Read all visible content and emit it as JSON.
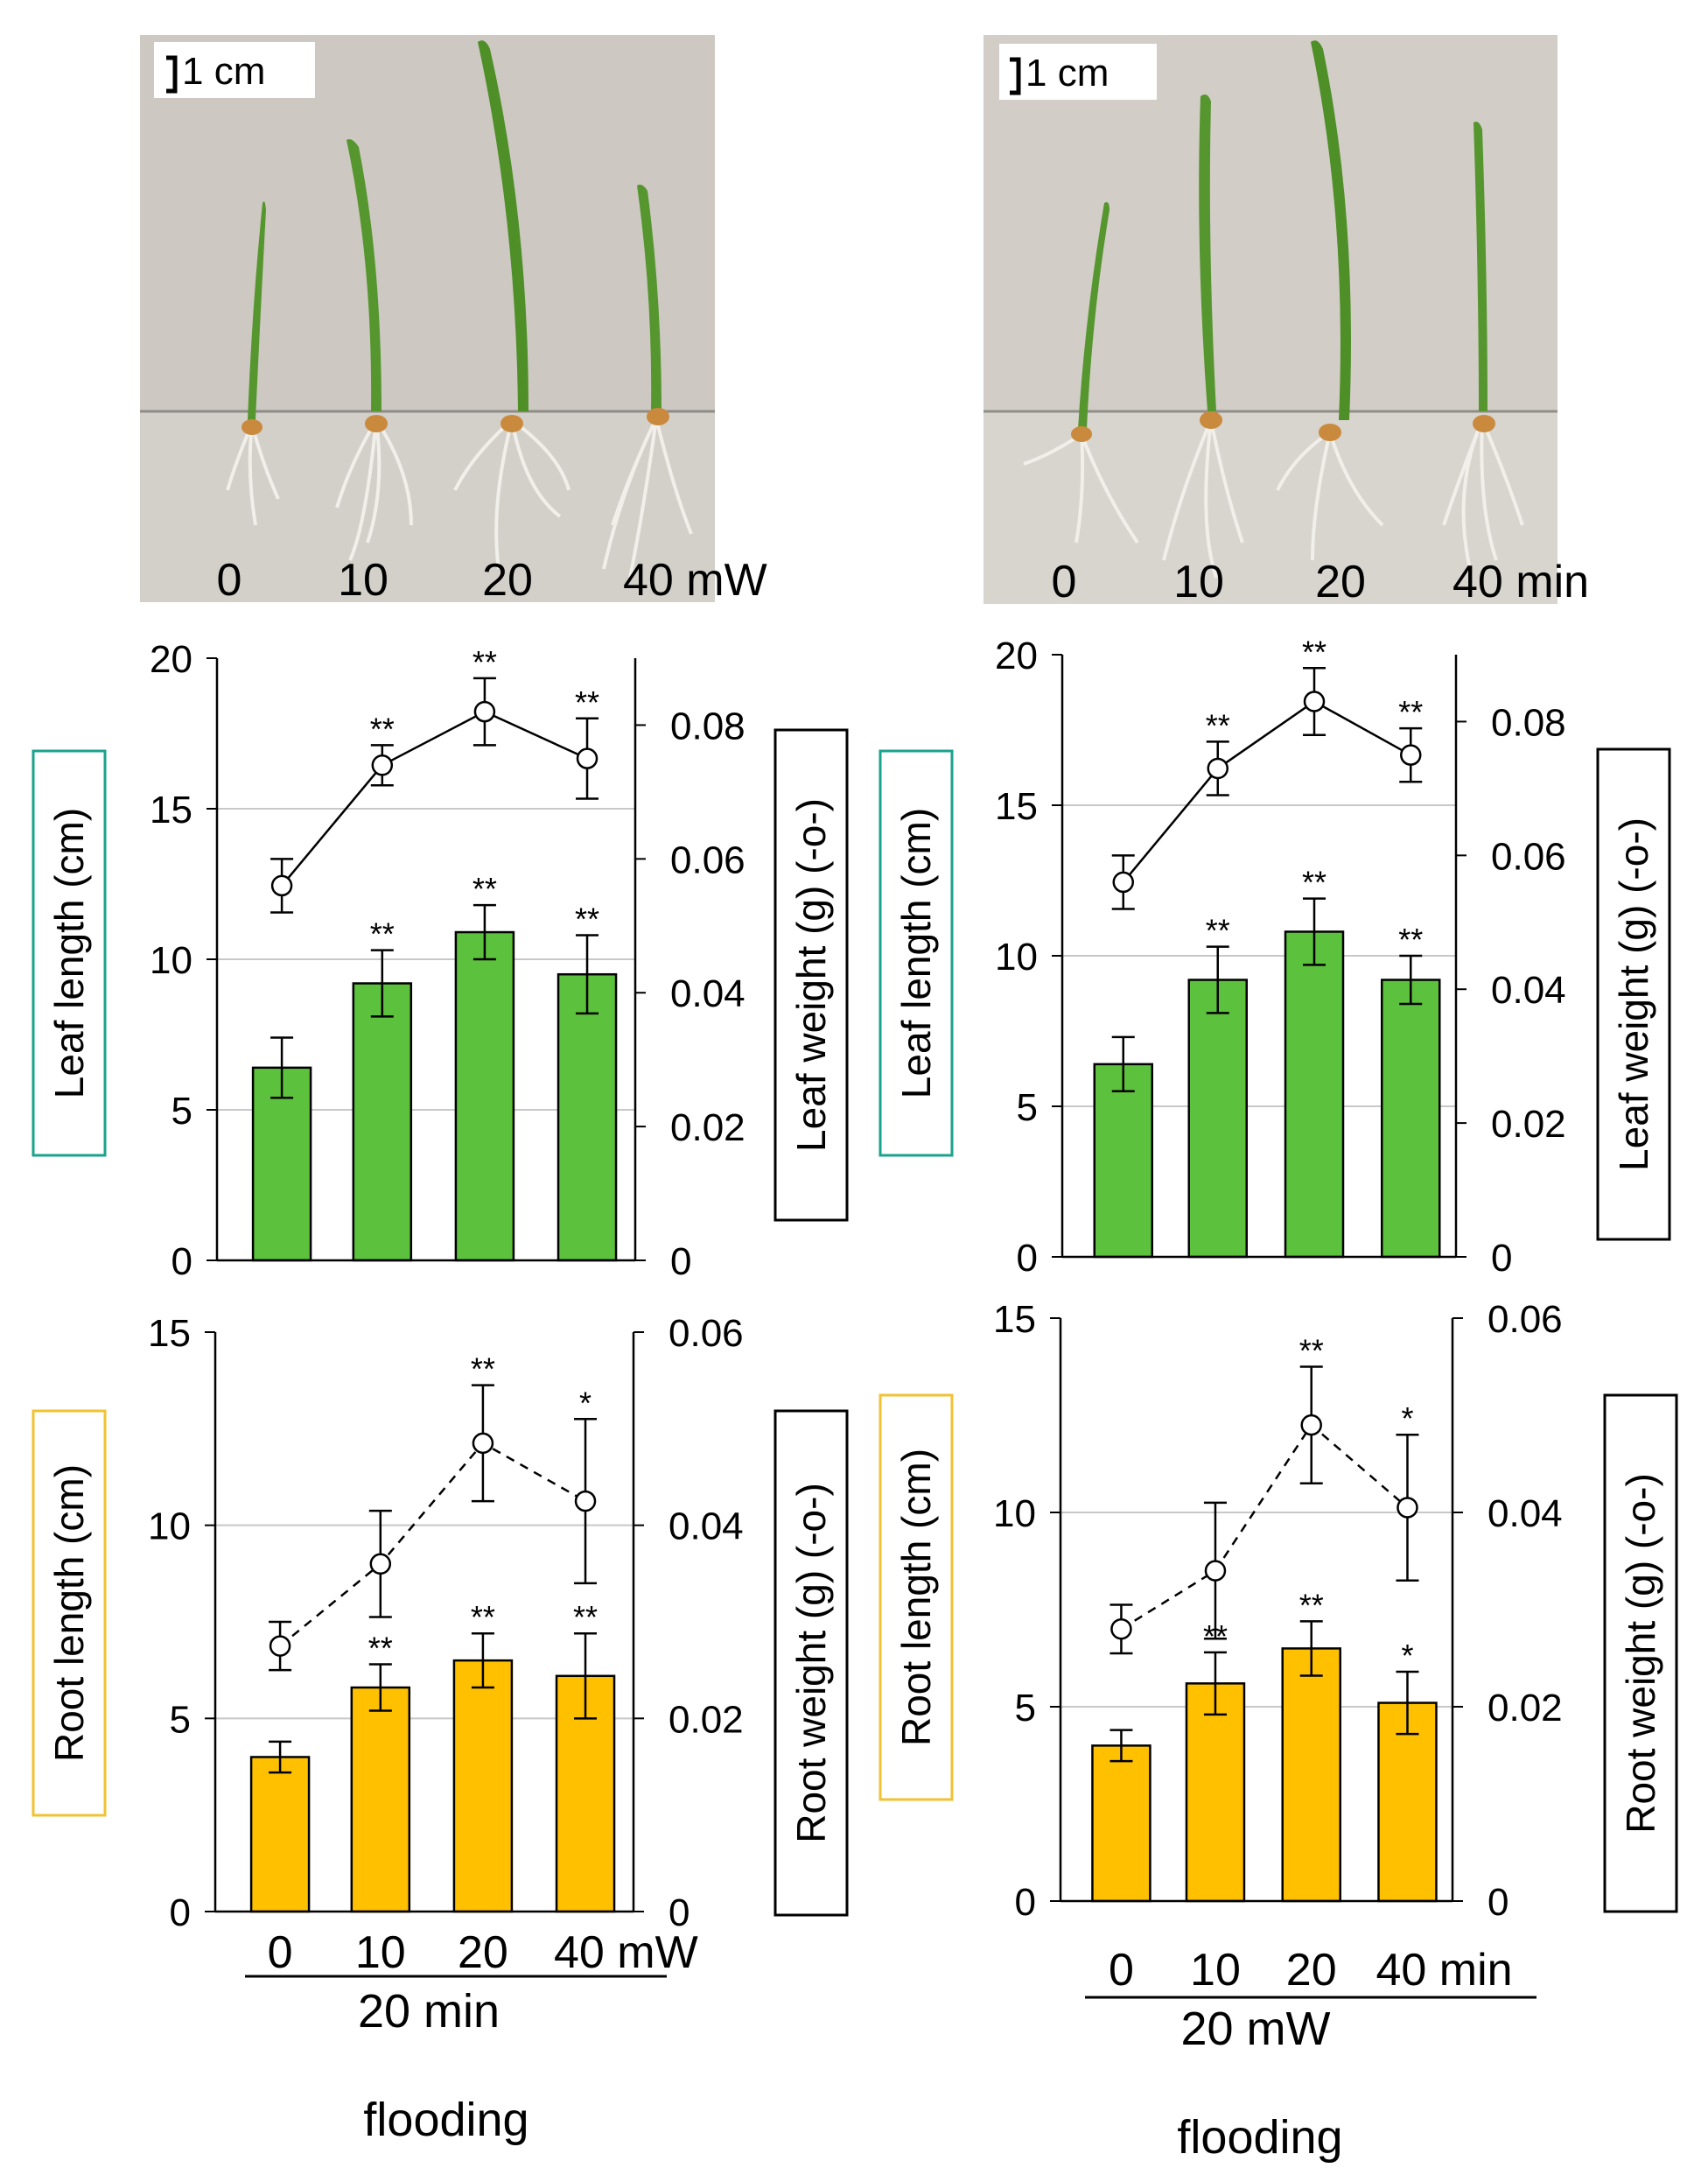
{
  "colors": {
    "leaf_bar": "#5cc13c",
    "root_bar": "#ffc000",
    "leaf_box": "#1aa38c",
    "root_box": "#f2c232",
    "grid": "#c8c8c8",
    "photo_bg": "#ccc7c0",
    "leaf_green": "#4c8f2a",
    "seed": "#c98a3e"
  },
  "photos": [
    {
      "scale_label": "1 cm",
      "labels": [
        "0",
        "10",
        "20",
        "40 mW"
      ]
    },
    {
      "scale_label": "1 cm",
      "labels": [
        "0",
        "10",
        "20",
        "40 min"
      ]
    }
  ],
  "captions": [
    {
      "sub_label": "20 min",
      "flooding": "flooding"
    },
    {
      "sub_label": "20 mW",
      "flooding": "flooding"
    }
  ],
  "chart_data": [
    {
      "id": "leaf-mw",
      "type": "bar+line",
      "categories": [
        "0",
        "10",
        "20",
        "40 mW"
      ],
      "bar_series": {
        "name": "Leaf length (cm)",
        "values": [
          6.4,
          9.2,
          10.9,
          9.5
        ],
        "errors": [
          1.0,
          1.1,
          0.9,
          1.3
        ],
        "sig": [
          "",
          "**",
          "**",
          "**"
        ]
      },
      "line_series": {
        "name": "Leaf weight (g) (-o-)",
        "values": [
          0.056,
          0.074,
          0.082,
          0.075
        ],
        "errors": [
          0.004,
          0.003,
          0.005,
          0.006
        ],
        "sig": [
          "",
          "**",
          "**",
          "**"
        ],
        "dashed": false
      },
      "ylabel_left": "Leaf length (cm)",
      "ylabel_right": "Leaf weight (g) (-o-)",
      "ylim_left": [
        0,
        20
      ],
      "yticks_left": [
        "0",
        "5",
        "10",
        "15",
        "20"
      ],
      "ylim_right": [
        0,
        0.09
      ],
      "yticks_right": [
        "0",
        "0.02",
        "0.04",
        "0.06",
        "0.08"
      ],
      "ytick_right_values": [
        0,
        0.02,
        0.04,
        0.06,
        0.08
      ],
      "grid": true
    },
    {
      "id": "leaf-min",
      "type": "bar+line",
      "categories": [
        "0",
        "10",
        "20",
        "40 min"
      ],
      "bar_series": {
        "name": "Leaf length (cm)",
        "values": [
          6.4,
          9.2,
          10.8,
          9.2
        ],
        "errors": [
          0.9,
          1.1,
          1.1,
          0.8
        ],
        "sig": [
          "",
          "**",
          "**",
          "**"
        ]
      },
      "line_series": {
        "name": "Leaf weight (g) (-o-)",
        "values": [
          0.056,
          0.073,
          0.083,
          0.075
        ],
        "errors": [
          0.004,
          0.004,
          0.005,
          0.004
        ],
        "sig": [
          "",
          "**",
          "**",
          "**"
        ],
        "dashed": false
      },
      "ylabel_left": "Leaf length (cm)",
      "ylabel_right": "Leaf weight (g) (-o-)",
      "ylim_left": [
        0,
        20
      ],
      "yticks_left": [
        "0",
        "5",
        "10",
        "15",
        "20"
      ],
      "ylim_right": [
        0,
        0.09
      ],
      "yticks_right": [
        "0",
        "0.02",
        "0.04",
        "0.06",
        "0.08"
      ],
      "ytick_right_values": [
        0,
        0.02,
        0.04,
        0.06,
        0.08
      ],
      "grid": true
    },
    {
      "id": "root-mw",
      "type": "bar+line",
      "categories": [
        "0",
        "10",
        "20",
        "40 mW"
      ],
      "bar_series": {
        "name": "Root length (cm)",
        "values": [
          4.0,
          5.8,
          6.5,
          6.1
        ],
        "errors": [
          0.4,
          0.6,
          0.7,
          1.1
        ],
        "sig": [
          "",
          "**",
          "**",
          "**"
        ]
      },
      "line_series": {
        "name": "Root weight (g) (-o-)",
        "values": [
          0.0275,
          0.036,
          0.0485,
          0.0425
        ],
        "errors": [
          0.0025,
          0.0055,
          0.006,
          0.0085
        ],
        "sig": [
          "",
          "",
          "**",
          "*"
        ],
        "dashed": true
      },
      "ylabel_left": "Root length (cm)",
      "ylabel_right": "Root weight (g) (-o-)",
      "ylim_left": [
        0,
        15
      ],
      "yticks_left": [
        "0",
        "5",
        "10",
        "15"
      ],
      "ylim_right": [
        0,
        0.06
      ],
      "yticks_right": [
        "0",
        "0.02",
        "0.04",
        "0.06"
      ],
      "ytick_right_values": [
        0,
        0.02,
        0.04,
        0.06
      ],
      "grid": true
    },
    {
      "id": "root-min",
      "type": "bar+line",
      "categories": [
        "0",
        "10",
        "20",
        "40 min"
      ],
      "bar_series": {
        "name": "Root length (cm)",
        "values": [
          4.0,
          5.6,
          6.5,
          5.1
        ],
        "errors": [
          0.4,
          0.8,
          0.7,
          0.8
        ],
        "sig": [
          "",
          "**",
          "**",
          "*"
        ]
      },
      "line_series": {
        "name": "Root weight (g) (-o-)",
        "values": [
          0.028,
          0.034,
          0.049,
          0.0405
        ],
        "errors": [
          0.0025,
          0.007,
          0.006,
          0.0075
        ],
        "sig": [
          "",
          "",
          "**",
          "*"
        ],
        "dashed": true
      },
      "ylabel_left": "Root length (cm)",
      "ylabel_right": "Root weight (g) (-o-)",
      "ylim_left": [
        0,
        15
      ],
      "yticks_left": [
        "0",
        "5",
        "10",
        "15"
      ],
      "ylim_right": [
        0,
        0.06
      ],
      "yticks_right": [
        "0",
        "0.02",
        "0.04",
        "0.06"
      ],
      "ytick_right_values": [
        0,
        0.02,
        0.04,
        0.06
      ],
      "grid": true
    }
  ]
}
